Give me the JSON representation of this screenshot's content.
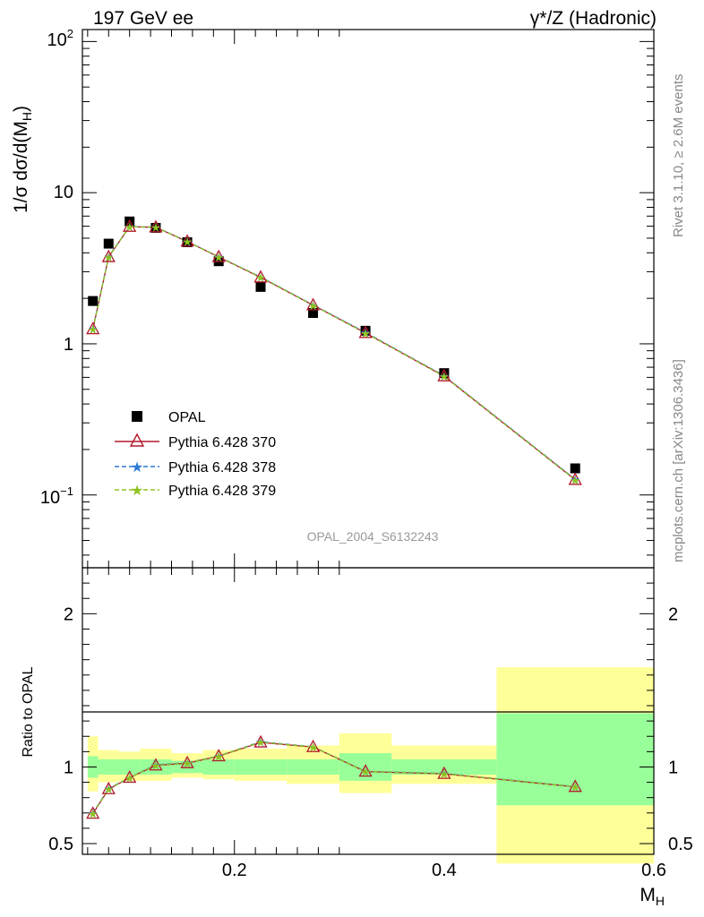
{
  "header": {
    "left_title": "197 GeV ee",
    "right_title": "γ*/Z (Hadronic)"
  },
  "side_text": {
    "rivet": "Rivet 3.1.10, ≥ 2.6M events",
    "mcplots": "mcplots.cern.ch [arXiv:1306.3436]"
  },
  "watermark": "OPAL_2004_S6132243",
  "colors": {
    "data": "#000000",
    "py370": "#b2182b",
    "py378": "#2c7bd6",
    "py379": "#8fc31f",
    "band_inner": "#99ff99",
    "band_outer": "#ffff99"
  },
  "chart_data": [
    {
      "type": "scatter",
      "panel": "main",
      "ylabel": "1/σ dσ/d(M_H)",
      "yscale": "log",
      "ylim": [
        0.033,
        120
      ],
      "xlim": [
        0.055,
        0.6
      ],
      "yticks": [
        "10^-1",
        "1",
        "10",
        "10^2"
      ],
      "legend_position": "middle-left",
      "series": [
        {
          "name": "OPAL",
          "marker": "filled-square",
          "x": [
            0.065,
            0.08,
            0.1,
            0.125,
            0.155,
            0.185,
            0.225,
            0.275,
            0.325,
            0.4,
            0.525
          ],
          "y": [
            1.92,
            4.6,
            6.45,
            5.85,
            4.7,
            3.52,
            2.38,
            1.6,
            1.22,
            0.64,
            0.15
          ]
        },
        {
          "name": "Pythia 6.428 370",
          "marker": "open-triangle",
          "line": "solid",
          "x": [
            0.065,
            0.08,
            0.1,
            0.125,
            0.155,
            0.185,
            0.225,
            0.275,
            0.325,
            0.4,
            0.525
          ],
          "y": [
            1.25,
            3.75,
            5.95,
            5.9,
            4.75,
            3.75,
            2.75,
            1.8,
            1.18,
            0.61,
            0.126
          ]
        },
        {
          "name": "Pythia 6.428 378",
          "marker": "star",
          "line": "dashed",
          "x": [
            0.065,
            0.08,
            0.1,
            0.125,
            0.155,
            0.185,
            0.225,
            0.275,
            0.325,
            0.4,
            0.525
          ],
          "y": [
            1.26,
            3.78,
            5.97,
            5.92,
            4.76,
            3.77,
            2.77,
            1.81,
            1.19,
            0.615,
            0.127
          ]
        },
        {
          "name": "Pythia 6.428 379",
          "marker": "star",
          "line": "dashed",
          "x": [
            0.065,
            0.08,
            0.1,
            0.125,
            0.155,
            0.185,
            0.225,
            0.275,
            0.325,
            0.4,
            0.525
          ],
          "y": [
            1.25,
            3.76,
            5.96,
            5.91,
            4.75,
            3.76,
            2.76,
            1.8,
            1.18,
            0.612,
            0.126
          ]
        }
      ]
    },
    {
      "type": "line",
      "panel": "ratio",
      "xlabel": "M_H",
      "ylabel": "Ratio to OPAL",
      "ylim": [
        0.43,
        2.3
      ],
      "xlim": [
        0.055,
        0.6
      ],
      "xticks": [
        0.2,
        0.4,
        0.6
      ],
      "yticks": [
        0.5,
        1,
        2
      ],
      "bands": {
        "x_edges": [
          0.06,
          0.07,
          0.09,
          0.11,
          0.14,
          0.17,
          0.2,
          0.25,
          0.3,
          0.35,
          0.45,
          0.6
        ],
        "inner_low": [
          0.93,
          0.95,
          0.95,
          0.95,
          0.96,
          0.95,
          0.95,
          0.95,
          0.91,
          0.95,
          0.75
        ],
        "inner_high": [
          1.07,
          1.05,
          1.05,
          1.05,
          1.04,
          1.05,
          1.05,
          1.05,
          1.09,
          1.05,
          1.35
        ],
        "outer_low": [
          0.84,
          0.9,
          0.91,
          0.91,
          0.93,
          0.92,
          0.91,
          0.89,
          0.83,
          0.89,
          0.37
        ],
        "outer_high": [
          1.2,
          1.11,
          1.1,
          1.12,
          1.09,
          1.11,
          1.12,
          1.14,
          1.22,
          1.14,
          1.65
        ]
      },
      "series": [
        {
          "name": "Pythia 6.428 370",
          "x": [
            0.065,
            0.08,
            0.1,
            0.125,
            0.155,
            0.185,
            0.225,
            0.275,
            0.325,
            0.4,
            0.525
          ],
          "y": [
            0.695,
            0.855,
            0.93,
            1.01,
            1.025,
            1.07,
            1.16,
            1.13,
            0.97,
            0.955,
            0.87
          ]
        },
        {
          "name": "Pythia 6.428 378",
          "x": [
            0.065,
            0.08,
            0.1,
            0.125,
            0.155,
            0.185,
            0.225,
            0.275,
            0.325,
            0.4,
            0.525
          ],
          "y": [
            0.7,
            0.86,
            0.93,
            1.015,
            1.028,
            1.072,
            1.165,
            1.132,
            0.972,
            0.958,
            0.872
          ]
        },
        {
          "name": "Pythia 6.428 379",
          "x": [
            0.065,
            0.08,
            0.1,
            0.125,
            0.155,
            0.185,
            0.225,
            0.275,
            0.325,
            0.4,
            0.525
          ],
          "y": [
            0.697,
            0.857,
            0.93,
            1.012,
            1.026,
            1.071,
            1.162,
            1.131,
            0.971,
            0.956,
            0.871
          ]
        }
      ]
    }
  ]
}
